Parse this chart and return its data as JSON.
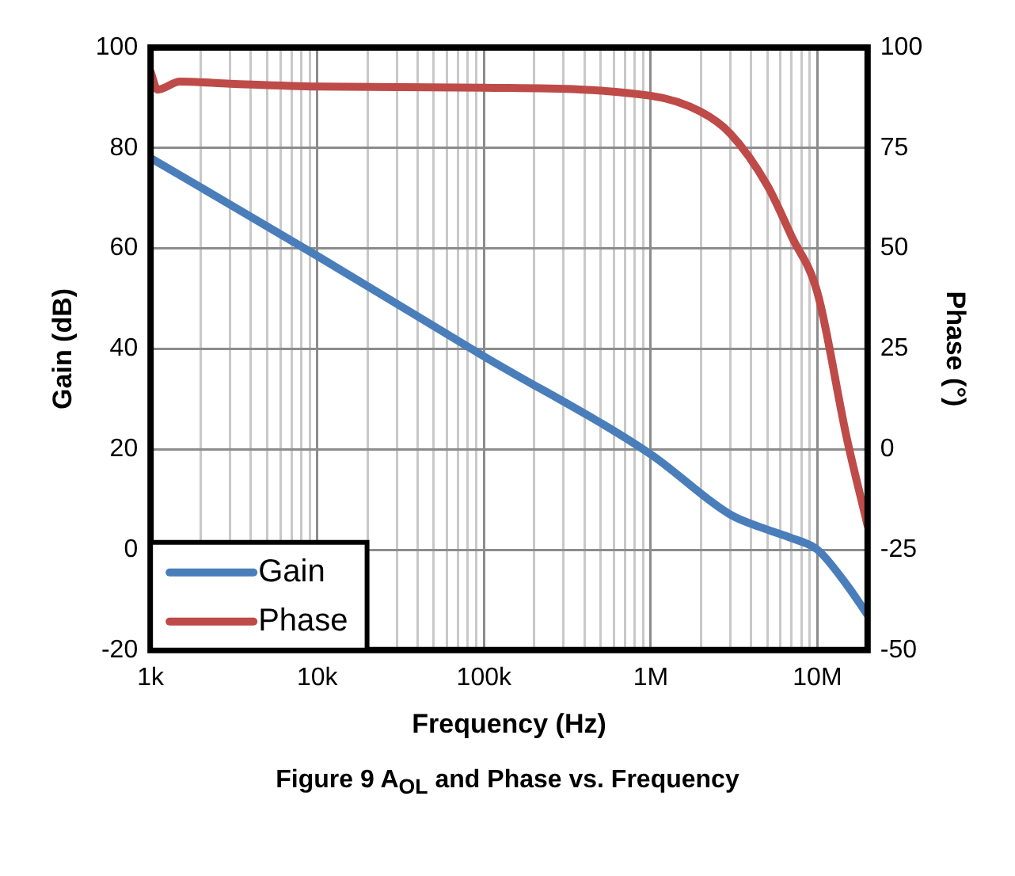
{
  "chart_data": {
    "type": "line",
    "title": "Figure 9 A$_{OL}$ and Phase vs. Frequency",
    "xlabel": "Frequency (Hz)",
    "ylabel": "Gain (dB)",
    "y2label": "Phase (°)",
    "log": "x",
    "grid": true,
    "legend": "bottom left",
    "marker": "none",
    "line_style": "solid",
    "xlim": [
      1000,
      20000000
    ],
    "xticks": [
      {
        "value": 1000,
        "label": "1k"
      },
      {
        "value": 2000,
        "label": null
      },
      {
        "value": 3000,
        "label": null
      },
      {
        "value": 4000,
        "label": null
      },
      {
        "value": 5000,
        "label": null
      },
      {
        "value": 6000,
        "label": null
      },
      {
        "value": 7000,
        "label": null
      },
      {
        "value": 8000,
        "label": null
      },
      {
        "value": 9000,
        "label": null
      },
      {
        "value": 10000,
        "label": "10k"
      },
      {
        "value": 20000,
        "label": null
      },
      {
        "value": 30000,
        "label": null
      },
      {
        "value": 40000,
        "label": null
      },
      {
        "value": 50000,
        "label": null
      },
      {
        "value": 60000,
        "label": null
      },
      {
        "value": 70000,
        "label": null
      },
      {
        "value": 80000,
        "label": null
      },
      {
        "value": 90000,
        "label": null
      },
      {
        "value": 100000,
        "label": "100k"
      },
      {
        "value": 200000,
        "label": null
      },
      {
        "value": 300000,
        "label": null
      },
      {
        "value": 400000,
        "label": null
      },
      {
        "value": 500000,
        "label": null
      },
      {
        "value": 600000,
        "label": null
      },
      {
        "value": 700000,
        "label": null
      },
      {
        "value": 800000,
        "label": null
      },
      {
        "value": 900000,
        "label": null
      },
      {
        "value": 1000000,
        "label": "1M"
      },
      {
        "value": 2000000,
        "label": null
      },
      {
        "value": 3000000,
        "label": null
      },
      {
        "value": 4000000,
        "label": null
      },
      {
        "value": 5000000,
        "label": null
      },
      {
        "value": 6000000,
        "label": null
      },
      {
        "value": 7000000,
        "label": null
      },
      {
        "value": 8000000,
        "label": null
      },
      {
        "value": 9000000,
        "label": null
      },
      {
        "value": 10000000,
        "label": "10M"
      },
      {
        "value": 20000000,
        "label": null
      }
    ],
    "ylim": [
      -20,
      100
    ],
    "yticks": [
      -20,
      0,
      20,
      40,
      60,
      80,
      100
    ],
    "y2lim": [
      -50,
      100
    ],
    "y2ticks": [
      -50,
      -25,
      0,
      25,
      50,
      75,
      100
    ],
    "series": [
      {
        "name": "Gain",
        "color": "#4a7ebb",
        "x": [
          1000,
          10000,
          100000,
          1000000,
          3000000,
          5000000,
          7000000,
          10000000,
          15000000,
          20000000
        ],
        "values": [
          78,
          58.5,
          38.5,
          19,
          7,
          4,
          2.3,
          0,
          -7,
          -13
        ]
      },
      {
        "name": "Phase",
        "color": "#be4b48",
        "axis": "y2",
        "x": [
          1000,
          1100,
          1500,
          3000,
          10000,
          100000,
          1000000,
          2000000,
          3000000,
          5000000,
          7000000,
          10000000,
          15000000,
          20000000
        ],
        "values": [
          94,
          89.5,
          91.5,
          91,
          90.3,
          90,
          88,
          84,
          78.6,
          65.7,
          53,
          39,
          2.8,
          -19
        ]
      }
    ]
  }
}
